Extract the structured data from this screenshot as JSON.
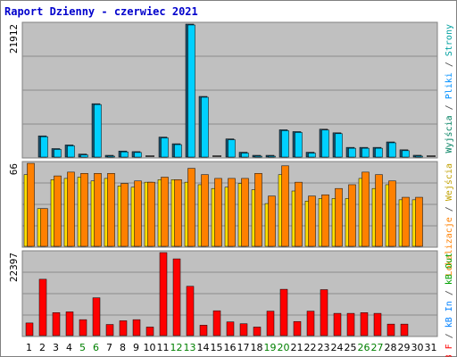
{
  "chart_data": {
    "type": "bar",
    "title": "Raport Dzienny -  czerwiec 2021",
    "categories": [
      "1",
      "2",
      "3",
      "4",
      "5",
      "6",
      "7",
      "8",
      "9",
      "10",
      "11",
      "12",
      "13",
      "14",
      "15",
      "16",
      "17",
      "18",
      "19",
      "20",
      "21",
      "22",
      "23",
      "24",
      "25",
      "26",
      "27",
      "28",
      "29",
      "30",
      "31"
    ],
    "weekend_days": [
      "5",
      "6",
      "12",
      "13",
      "19",
      "20",
      "26",
      "27"
    ],
    "grid": true,
    "colors": {
      "background": "#c0c0c0",
      "frame": "#808080",
      "title": "#0000cc",
      "weekend_label": "#008000",
      "wyjscia": "#00c0c0",
      "strony": "#00a0ff",
      "pliki": "#00d0ff",
      "lokalizacje": "#ff8000",
      "wejscia": "#ffe000",
      "kb_f": "#ff0000"
    },
    "panels": [
      {
        "name": "top",
        "axis_label": "21912",
        "ymax": 21912,
        "side_labels": [
          {
            "text": "Wyjścia",
            "color": "#008060"
          },
          {
            "text": " / ",
            "color": "#404040"
          },
          {
            "text": "Pliki",
            "color": "#0090ff"
          },
          {
            "text": " / ",
            "color": "#404040"
          },
          {
            "text": "Strony",
            "color": "#00a0a0"
          }
        ],
        "series": [
          {
            "name": "Wyjścia",
            "values": [
              0,
              3500,
              1400,
              2000,
              500,
              8800,
              250,
              1000,
              900,
              0,
              3300,
              2200,
              21912,
              10000,
              0,
              3000,
              800,
              200,
              200,
              4500,
              4200,
              800,
              4600,
              4000,
              1600,
              1600,
              1600,
              2500,
              1200,
              300,
              0
            ]
          },
          {
            "name": "Pliki",
            "values": [
              0,
              3500,
              1400,
              2000,
              500,
              8800,
              250,
              1000,
              900,
              0,
              3300,
              2200,
              21912,
              10000,
              0,
              3000,
              800,
              200,
              200,
              4500,
              4200,
              800,
              4600,
              4000,
              1600,
              1600,
              1600,
              2500,
              1200,
              300,
              0
            ]
          },
          {
            "name": "Strony",
            "values": [
              0,
              3500,
              1400,
              2000,
              500,
              8800,
              250,
              1000,
              900,
              0,
              3300,
              2200,
              21912,
              10000,
              0,
              3000,
              800,
              200,
              200,
              4500,
              4200,
              800,
              4600,
              4000,
              1600,
              1600,
              1600,
              2500,
              1200,
              300,
              0
            ]
          }
        ]
      },
      {
        "name": "middle",
        "axis_label": "66",
        "ymax": 66,
        "side_labels": [
          {
            "text": "Lokalizacje",
            "color": "#ff8000"
          },
          {
            "text": " / ",
            "color": "#404040"
          },
          {
            "text": "Wejścia",
            "color": "#c0a000"
          }
        ],
        "series": [
          {
            "name": "Wejścia",
            "values": [
              57,
              30,
              53,
              54,
              55,
              52,
              54,
              48,
              47,
              51,
              53,
              53,
              51,
              49,
              46,
              47,
              50,
              45,
              34,
              57,
              44,
              36,
              38,
              38,
              38,
              54,
              46,
              49,
              37,
              37,
              0
            ]
          },
          {
            "name": "Lokalizacje",
            "values": [
              66,
              30,
              56,
              59,
              58,
              58,
              58,
              50,
              52,
              51,
              55,
              53,
              62,
              57,
              54,
              54,
              54,
              58,
              40,
              64,
              51,
              40,
              41,
              46,
              49,
              59,
              57,
              52,
              39,
              39,
              0
            ]
          }
        ]
      },
      {
        "name": "bottom",
        "axis_label": "22397",
        "ymax": 22397,
        "side_labels": [
          {
            "text": "kB F",
            "color": "#ff0000"
          },
          {
            "text": " / ",
            "color": "#404040"
          },
          {
            "text": "kB In",
            "color": "#0080ff"
          },
          {
            "text": " / ",
            "color": "#404040"
          },
          {
            "text": "kB Out",
            "color": "#00a000"
          }
        ],
        "series": [
          {
            "name": "kB F",
            "values": [
              3400,
              15200,
              6200,
              6400,
              4300,
              10200,
              3000,
              4000,
              4300,
              2300,
              22397,
              20700,
              13300,
              2800,
              6700,
              3700,
              3200,
              2300,
              6600,
              12500,
              3800,
              6600,
              12400,
              6000,
              6000,
              6200,
              6000,
              3100,
              3100,
              0,
              0
            ]
          }
        ]
      }
    ]
  }
}
